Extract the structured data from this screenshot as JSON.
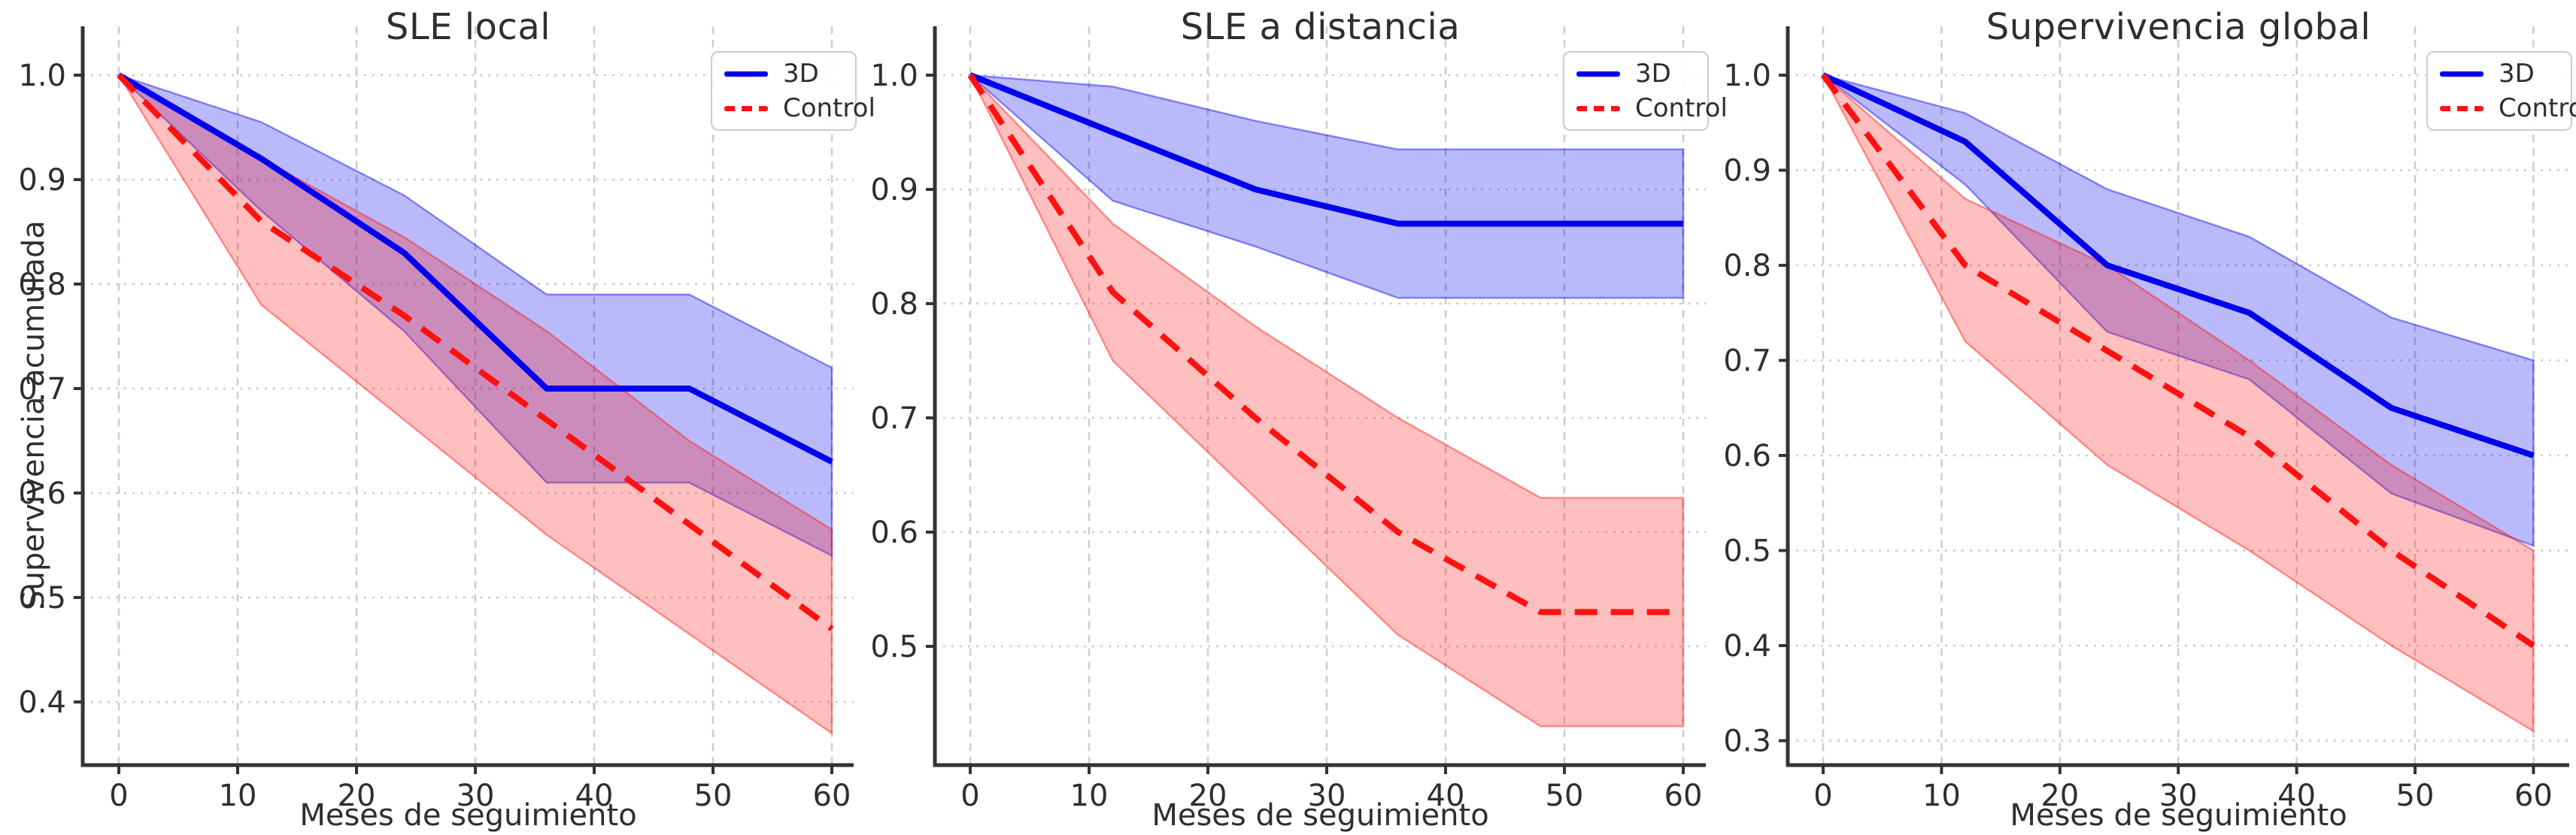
{
  "style": {
    "background": "#ffffff",
    "text_color": "#2e2e2e",
    "grid_color": "#cccccc",
    "spine_color": "#333333",
    "blue": "#0000ee",
    "red": "#ff1111",
    "band_alpha": 0.27
  },
  "chart_data": [
    {
      "type": "line",
      "title": "SLE local",
      "xlabel": "Meses de seguimiento",
      "ylabel": "Supervivencia acumulada",
      "x": [
        0,
        12,
        24,
        36,
        48,
        60
      ],
      "xticks": [
        0,
        10,
        20,
        30,
        40,
        50,
        60
      ],
      "yticks": [
        1.0,
        0.9,
        0.8,
        0.7,
        0.6,
        0.5,
        0.4
      ],
      "xlim": [
        -3,
        63
      ],
      "ylim": [
        0.34,
        1.046
      ],
      "grid": true,
      "legend_position": "upper right",
      "series": [
        {
          "name": "3D",
          "color": "#0000ee",
          "line_style": "solid",
          "values": [
            1.0,
            0.92,
            0.83,
            0.7,
            0.7,
            0.63
          ],
          "ci_upper": [
            1.0,
            0.955,
            0.885,
            0.79,
            0.79,
            0.72
          ],
          "ci_lower": [
            1.0,
            0.87,
            0.755,
            0.61,
            0.61,
            0.54
          ]
        },
        {
          "name": "Control",
          "color": "#ff1111",
          "line_style": "dashed",
          "values": [
            1.0,
            0.86,
            0.77,
            0.67,
            0.57,
            0.47
          ],
          "ci_upper": [
            1.0,
            0.92,
            0.845,
            0.755,
            0.65,
            0.565
          ],
          "ci_lower": [
            1.0,
            0.78,
            0.67,
            0.56,
            0.465,
            0.37
          ]
        }
      ]
    },
    {
      "type": "line",
      "title": "SLE a distancia",
      "xlabel": "Meses de seguimiento",
      "ylabel": "",
      "x": [
        0,
        12,
        24,
        36,
        48,
        60
      ],
      "xticks": [
        0,
        10,
        20,
        30,
        40,
        50,
        60
      ],
      "yticks": [
        1.0,
        0.9,
        0.8,
        0.7,
        0.6,
        0.5
      ],
      "xlim": [
        -3,
        63
      ],
      "ylim": [
        0.396,
        1.044
      ],
      "grid": true,
      "legend_position": "upper right",
      "series": [
        {
          "name": "3D",
          "color": "#0000ee",
          "line_style": "solid",
          "values": [
            1.0,
            0.95,
            0.9,
            0.87,
            0.87,
            0.87
          ],
          "ci_upper": [
            1.0,
            0.99,
            0.96,
            0.935,
            0.935,
            0.935
          ],
          "ci_lower": [
            1.0,
            0.89,
            0.85,
            0.805,
            0.805,
            0.805
          ]
        },
        {
          "name": "Control",
          "color": "#ff1111",
          "line_style": "dashed",
          "values": [
            1.0,
            0.81,
            0.7,
            0.6,
            0.53,
            0.53
          ],
          "ci_upper": [
            1.0,
            0.87,
            0.78,
            0.7,
            0.63,
            0.63
          ],
          "ci_lower": [
            1.0,
            0.75,
            0.63,
            0.51,
            0.43,
            0.43
          ]
        }
      ]
    },
    {
      "type": "line",
      "title": "Supervivencia global",
      "xlabel": "Meses de seguimiento",
      "ylabel": "",
      "x": [
        0,
        12,
        24,
        36,
        48,
        60
      ],
      "xticks": [
        0,
        10,
        20,
        30,
        40,
        50,
        60
      ],
      "yticks": [
        1.0,
        0.9,
        0.8,
        0.7,
        0.6,
        0.5,
        0.4,
        0.3
      ],
      "xlim": [
        -3,
        63
      ],
      "ylim": [
        0.275,
        1.052
      ],
      "grid": true,
      "legend_position": "upper right",
      "series": [
        {
          "name": "3D",
          "color": "#0000ee",
          "line_style": "solid",
          "values": [
            1.0,
            0.93,
            0.8,
            0.75,
            0.65,
            0.6
          ],
          "ci_upper": [
            1.0,
            0.96,
            0.88,
            0.83,
            0.745,
            0.7
          ],
          "ci_lower": [
            1.0,
            0.885,
            0.73,
            0.68,
            0.56,
            0.505
          ]
        },
        {
          "name": "Control",
          "color": "#ff1111",
          "line_style": "dashed",
          "values": [
            1.0,
            0.8,
            0.71,
            0.62,
            0.5,
            0.4
          ],
          "ci_upper": [
            1.0,
            0.87,
            0.8,
            0.7,
            0.59,
            0.5
          ],
          "ci_lower": [
            1.0,
            0.72,
            0.59,
            0.5,
            0.4,
            0.31
          ]
        }
      ]
    }
  ]
}
